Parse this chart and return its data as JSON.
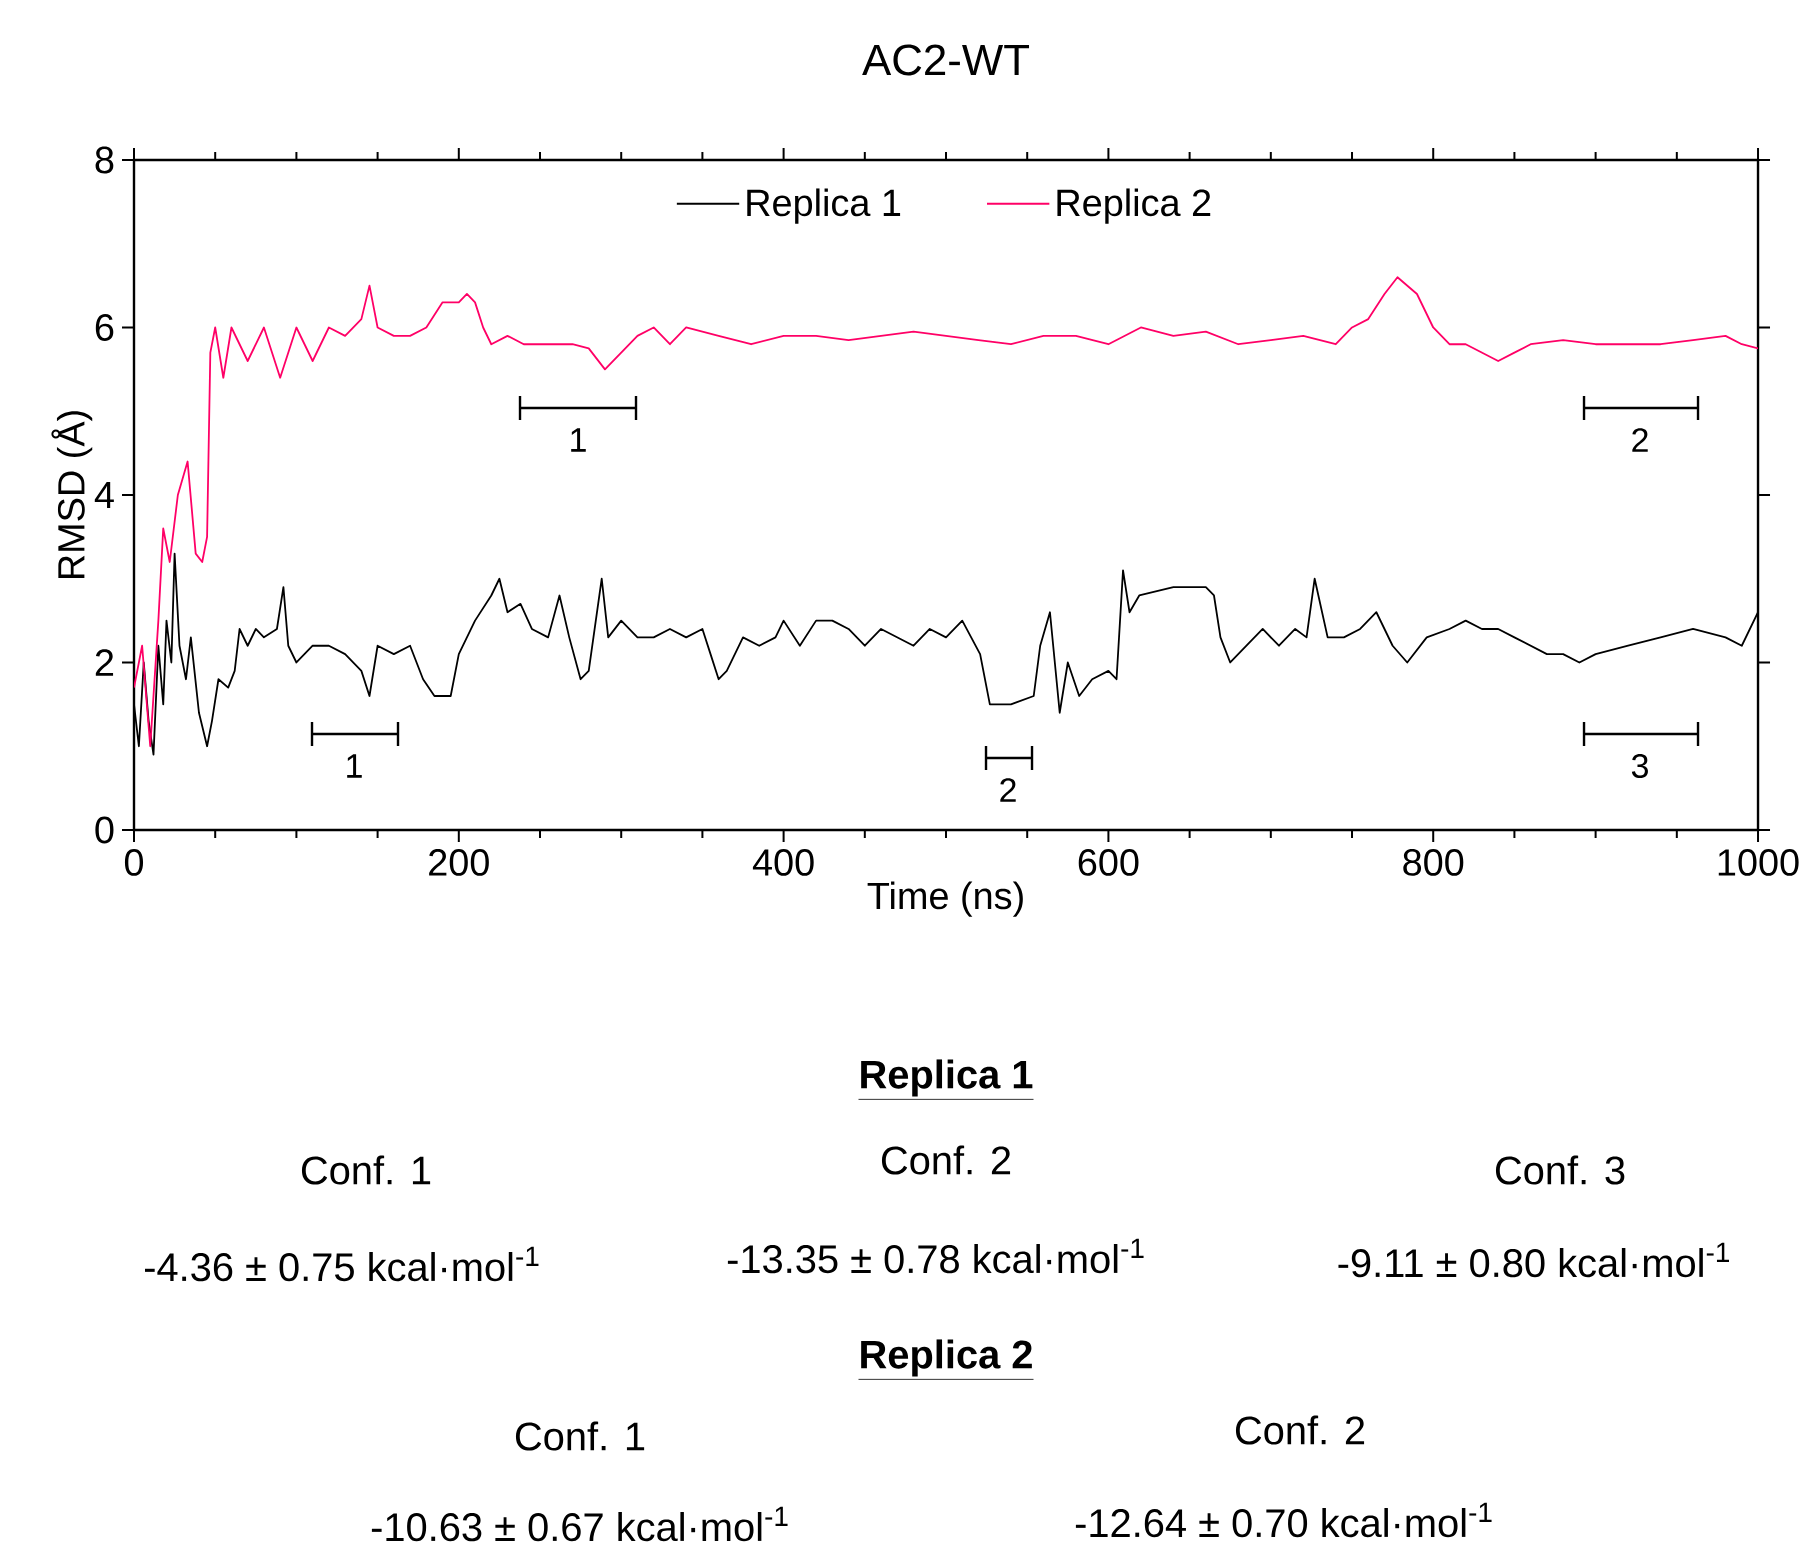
{
  "chart_data": {
    "type": "line",
    "title": "AC2-WT",
    "xlabel": "Time (ns)",
    "ylabel": "RMSD (Å)",
    "xlim": [
      0,
      1000
    ],
    "ylim": [
      0,
      8
    ],
    "xticks": [
      0,
      200,
      400,
      600,
      800,
      1000
    ],
    "yticks": [
      0,
      2,
      4,
      6,
      8
    ],
    "legend": "top",
    "marker": "none",
    "line_style": "solid",
    "grid": false,
    "series": [
      {
        "name": "Replica 1",
        "color": "#000000",
        "x": [
          0,
          3,
          6,
          9,
          12,
          15,
          18,
          20,
          23,
          25,
          28,
          32,
          35,
          40,
          45,
          48,
          52,
          58,
          62,
          65,
          70,
          75,
          80,
          88,
          92,
          95,
          100,
          110,
          120,
          130,
          140,
          145,
          150,
          160,
          170,
          178,
          185,
          195,
          200,
          210,
          220,
          225,
          230,
          238,
          245,
          255,
          262,
          268,
          275,
          280,
          288,
          292,
          300,
          310,
          320,
          330,
          340,
          350,
          355,
          360,
          365,
          375,
          385,
          395,
          400,
          410,
          420,
          430,
          440,
          450,
          460,
          470,
          480,
          490,
          500,
          510,
          521,
          527,
          540,
          554,
          558,
          564,
          570,
          575,
          582,
          590,
          600,
          605,
          609,
          613,
          619,
          640,
          660,
          665,
          669,
          675,
          685,
          695,
          705,
          715,
          722,
          727,
          735,
          745,
          755,
          765,
          775,
          784,
          796,
          810,
          820,
          830,
          840,
          850,
          860,
          870,
          880,
          890,
          900,
          920,
          940,
          960,
          980,
          990,
          1000
        ],
        "values": [
          1.5,
          1.0,
          2.0,
          1.3,
          0.9,
          2.2,
          1.5,
          2.5,
          2.0,
          3.3,
          2.2,
          1.8,
          2.3,
          1.4,
          1.0,
          1.3,
          1.8,
          1.7,
          1.9,
          2.4,
          2.2,
          2.4,
          2.3,
          2.4,
          2.9,
          2.2,
          2.0,
          2.2,
          2.2,
          2.1,
          1.9,
          1.6,
          2.2,
          2.1,
          2.2,
          1.8,
          1.6,
          1.6,
          2.1,
          2.5,
          2.8,
          3.0,
          2.6,
          2.7,
          2.4,
          2.3,
          2.8,
          2.3,
          1.8,
          1.9,
          3.0,
          2.3,
          2.5,
          2.3,
          2.3,
          2.4,
          2.3,
          2.4,
          2.1,
          1.8,
          1.9,
          2.3,
          2.2,
          2.3,
          2.5,
          2.2,
          2.5,
          2.5,
          2.4,
          2.2,
          2.4,
          2.3,
          2.2,
          2.4,
          2.3,
          2.5,
          2.1,
          1.5,
          1.5,
          1.6,
          2.2,
          2.6,
          1.4,
          2.0,
          1.6,
          1.8,
          1.9,
          1.8,
          3.1,
          2.6,
          2.8,
          2.9,
          2.9,
          2.8,
          2.3,
          2.0,
          2.2,
          2.4,
          2.2,
          2.4,
          2.3,
          3.0,
          2.3,
          2.3,
          2.4,
          2.6,
          2.2,
          2.0,
          2.3,
          2.4,
          2.5,
          2.4,
          2.4,
          2.3,
          2.2,
          2.1,
          2.1,
          2.0,
          2.1,
          2.2,
          2.3,
          2.4,
          2.3,
          2.2,
          2.6
        ]
      },
      {
        "name": "Replica 2",
        "color": "#ff0066",
        "x": [
          0,
          5,
          10,
          15,
          18,
          22,
          27,
          33,
          38,
          42,
          45,
          47,
          50,
          55,
          60,
          70,
          80,
          90,
          100,
          110,
          120,
          130,
          140,
          145,
          150,
          160,
          170,
          180,
          190,
          200,
          205,
          210,
          215,
          220,
          230,
          240,
          250,
          260,
          270,
          280,
          290,
          300,
          310,
          320,
          330,
          340,
          360,
          380,
          400,
          420,
          440,
          460,
          480,
          500,
          520,
          540,
          560,
          580,
          600,
          620,
          640,
          660,
          680,
          700,
          720,
          740,
          750,
          760,
          770,
          778,
          790,
          800,
          810,
          820,
          840,
          850,
          860,
          880,
          900,
          920,
          940,
          960,
          980,
          990,
          1000
        ],
        "values": [
          1.7,
          2.2,
          1.0,
          2.5,
          3.6,
          3.2,
          4.0,
          4.4,
          3.3,
          3.2,
          3.5,
          5.7,
          6.0,
          5.4,
          6.0,
          5.6,
          6.0,
          5.4,
          6.0,
          5.6,
          6.0,
          5.9,
          6.1,
          6.5,
          6.0,
          5.9,
          5.9,
          6.0,
          6.3,
          6.3,
          6.4,
          6.3,
          6.0,
          5.8,
          5.9,
          5.8,
          5.8,
          5.8,
          5.8,
          5.75,
          5.5,
          5.7,
          5.9,
          6.0,
          5.8,
          6.0,
          5.9,
          5.8,
          5.9,
          5.9,
          5.85,
          5.9,
          5.95,
          5.9,
          5.85,
          5.8,
          5.9,
          5.9,
          5.8,
          6.0,
          5.9,
          5.95,
          5.8,
          5.85,
          5.9,
          5.8,
          6.0,
          6.1,
          6.4,
          6.6,
          6.4,
          6.0,
          5.8,
          5.8,
          5.6,
          5.7,
          5.8,
          5.85,
          5.8,
          5.8,
          5.8,
          5.85,
          5.9,
          5.8,
          5.75
        ]
      }
    ],
    "annotations": [
      "1",
      "2",
      "1",
      "2",
      "3",
      "Replica 1",
      "Conf. 1",
      "Conf. 2",
      "Conf. 3",
      "-4.36 ± 0.75 kcal·mol$^{-1}$",
      "-13.35 ± 0.78 kcal·mol$^{-1}$",
      "-9.11 ± 0.80 kcal·mol$^{-1}$",
      "Replica 2",
      "Conf. 1",
      "Conf. 2",
      "-10.63 ± 0.67 kcal·mol$^{-1}$",
      "-12.64 ± 0.70 kcal·mol$^{-1}$"
    ]
  }
}
